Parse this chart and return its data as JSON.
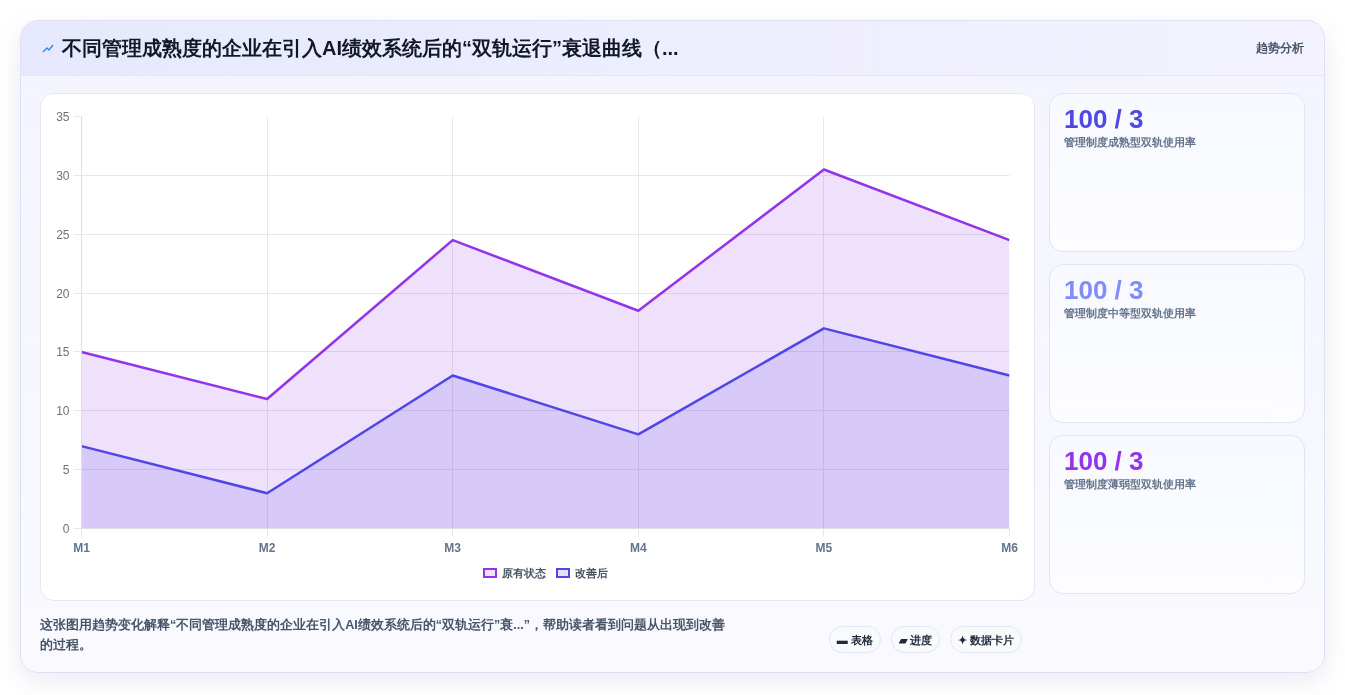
{
  "chart_data": [
    {
      "type": "area",
      "title": "不同管理成熟度的企业在引入AI绩效系统后的“双轨运行”衰退曲线（...",
      "categories": [
        "M1",
        "M2",
        "M3",
        "M4",
        "M5",
        "M6"
      ],
      "series": [
        {
          "name": "原有状态",
          "color": "#9333ea",
          "values": [
            15,
            11,
            24.5,
            18.5,
            30.5,
            24.5
          ]
        },
        {
          "name": "改善后",
          "color": "#4f46e5",
          "values": [
            7,
            3,
            13,
            8,
            17,
            13
          ]
        }
      ],
      "ylim": [
        0,
        35
      ],
      "yticks": [
        0,
        5,
        10,
        15,
        20,
        25,
        30,
        35
      ],
      "grid": true,
      "legend": "bottom",
      "annotations": [
        "这张图用趋势变化解释“不同管理成熟度的企业在引入AI绩效系统后的“双轨运行”衰...”，帮助读者看到问题从出现到改善的过程。",
        "▬ 表格",
        "▰ 进度",
        "✦ 数据卡片"
      ]
    },
    {
      "type": "other",
      "title": "100 / 3",
      "subtitle": "管理制度成熟型双轨使用率",
      "color": "#4f46e5",
      "annotations": [
        "趋势分析"
      ]
    },
    {
      "type": "other",
      "title": "100 / 3",
      "subtitle": "管理制度中等型双轨使用率",
      "color": "#818cf8"
    },
    {
      "type": "other",
      "title": "100 / 3",
      "subtitle": "管理制度薄弱型双轨使用率",
      "color": "#9333ea"
    }
  ]
}
